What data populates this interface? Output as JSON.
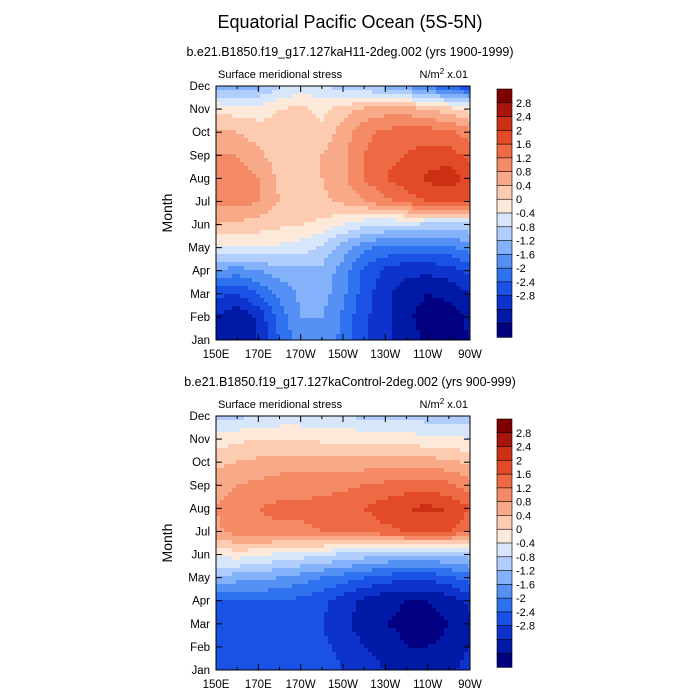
{
  "figure": {
    "title": "Equatorial Pacific Ocean (5S-5N)"
  },
  "colors": {
    "levels_fill": [
      "#000080",
      "#001aa6",
      "#0d33cc",
      "#1a52e6",
      "#2f72f0",
      "#5590f5",
      "#84b2fa",
      "#b0cdfb",
      "#d8e6fc",
      "#fde9d9",
      "#fccbb0",
      "#f8a987",
      "#f48a66",
      "#ee6a45",
      "#e34a28",
      "#cc3014",
      "#a8150a",
      "#800000"
    ]
  },
  "chart_data": [
    {
      "type": "heatmap",
      "subtitle": "b.e21.B1850.f19_g17.127kaH11-2deg.002 (yrs 1900-1999)",
      "left_label": "Surface meridional stress",
      "units_prefix": "N/m",
      "units_sup": "2",
      "units_suffix": " x.01",
      "xlabel": "",
      "ylabel": "Month",
      "x": [
        150,
        160,
        170,
        180,
        190,
        200,
        210,
        220,
        230,
        240,
        250,
        260,
        270
      ],
      "xticks": [
        "150E",
        "170E",
        "170W",
        "150W",
        "130W",
        "110W",
        "90W"
      ],
      "yticks": [
        "Jan",
        "Feb",
        "Mar",
        "Apr",
        "May",
        "Jun",
        "Jul",
        "Aug",
        "Sep",
        "Oct",
        "Nov",
        "Dec"
      ],
      "levels": [
        -2.8,
        -2.4,
        -2.0,
        -1.6,
        -1.2,
        -0.8,
        -0.4,
        0,
        0.4,
        0.8,
        1.2,
        1.6,
        2.0,
        2.4,
        2.8
      ],
      "colorbar_labels": [
        "2.8",
        "2.4",
        "2",
        "1.6",
        "1.2",
        "0.8",
        "0.4",
        "0",
        "-0.4",
        "-0.8",
        "-1.2",
        "-1.6",
        "-2",
        "-2.4",
        "-2.8"
      ],
      "z": [
        [
          -2.6,
          -2.7,
          -2.4,
          -1.6,
          -1.0,
          -0.9,
          -1.3,
          -1.9,
          -2.3,
          -2.6,
          -2.9,
          -3.0,
          -2.8
        ],
        [
          -2.4,
          -2.8,
          -2.3,
          -1.4,
          -0.8,
          -0.8,
          -1.3,
          -1.9,
          -2.3,
          -2.7,
          -3.0,
          -3.0,
          -2.7
        ],
        [
          -1.9,
          -2.0,
          -1.6,
          -1.1,
          -0.7,
          -0.6,
          -1.1,
          -1.8,
          -2.3,
          -2.6,
          -2.8,
          -2.7,
          -2.4
        ],
        [
          -0.9,
          -1.0,
          -0.8,
          -0.6,
          -0.5,
          -0.5,
          -1.0,
          -1.7,
          -2.1,
          -2.3,
          -2.3,
          -2.2,
          -1.9
        ],
        [
          0.4,
          0.3,
          0.4,
          0.3,
          0.2,
          -0.1,
          -0.6,
          -1.1,
          -1.3,
          -1.4,
          -1.4,
          -1.3,
          -1.0
        ],
        [
          1.2,
          1.1,
          1.0,
          0.9,
          0.8,
          0.7,
          0.4,
          0.1,
          0.0,
          0.0,
          -0.1,
          -0.2,
          -0.1
        ],
        [
          1.7,
          1.8,
          1.6,
          1.2,
          1.1,
          1.1,
          1.3,
          1.6,
          1.9,
          2.2,
          2.4,
          2.5,
          2.4
        ],
        [
          1.8,
          1.9,
          1.6,
          1.1,
          1.1,
          1.2,
          1.5,
          2.0,
          2.4,
          2.6,
          2.9,
          3.0,
          2.7
        ],
        [
          1.6,
          1.6,
          1.3,
          1.0,
          1.0,
          1.2,
          1.5,
          2.0,
          2.3,
          2.4,
          2.6,
          2.6,
          2.3
        ],
        [
          1.3,
          1.2,
          1.0,
          0.9,
          1.0,
          0.9,
          1.4,
          1.9,
          2.1,
          2.2,
          2.2,
          2.1,
          1.8
        ],
        [
          0.7,
          0.6,
          0.6,
          0.8,
          0.9,
          0.7,
          1.0,
          1.3,
          1.4,
          1.4,
          1.2,
          1.0,
          0.6
        ],
        [
          -0.6,
          -0.7,
          -0.5,
          -0.1,
          0.2,
          0.0,
          -0.2,
          -0.4,
          -0.6,
          -0.9,
          -1.3,
          -1.7,
          -1.9
        ]
      ]
    },
    {
      "type": "heatmap",
      "subtitle": "b.e21.B1850.f19_g17.127kaControl-2deg.002 (yrs 900-999)",
      "left_label": "Surface meridional stress",
      "units_prefix": "N/m",
      "units_sup": "2",
      "units_suffix": " x.01",
      "xlabel": "",
      "ylabel": "Month",
      "x": [
        150,
        160,
        170,
        180,
        190,
        200,
        210,
        220,
        230,
        240,
        250,
        260,
        270
      ],
      "xticks": [
        "150E",
        "170E",
        "170W",
        "150W",
        "130W",
        "110W",
        "90W"
      ],
      "yticks": [
        "Jan",
        "Feb",
        "Mar",
        "Apr",
        "May",
        "Jun",
        "Jul",
        "Aug",
        "Sep",
        "Oct",
        "Nov",
        "Dec"
      ],
      "levels": [
        -2.8,
        -2.4,
        -2.0,
        -1.6,
        -1.2,
        -0.8,
        -0.4,
        0,
        0.4,
        0.8,
        1.2,
        1.6,
        2.0,
        2.4,
        2.8
      ],
      "colorbar_labels": [
        "2.8",
        "2.4",
        "2",
        "1.6",
        "1.2",
        "0.8",
        "0.4",
        "0",
        "-0.4",
        "-0.8",
        "-1.2",
        "-1.6",
        "-2",
        "-2.4",
        "-2.8"
      ],
      "z": [
        [
          -1.8,
          -1.9,
          -1.8,
          -1.7,
          -1.6,
          -1.8,
          -2.0,
          -2.2,
          -2.4,
          -2.6,
          -2.6,
          -2.5,
          -2.2
        ],
        [
          -1.7,
          -1.8,
          -1.7,
          -1.6,
          -1.7,
          -1.9,
          -2.1,
          -2.4,
          -2.6,
          -2.8,
          -2.8,
          -2.7,
          -2.4
        ],
        [
          -1.7,
          -1.8,
          -1.8,
          -1.7,
          -1.8,
          -2.0,
          -2.3,
          -2.6,
          -2.8,
          -2.9,
          -3.0,
          -2.8,
          -2.5
        ],
        [
          -1.6,
          -1.7,
          -1.6,
          -1.6,
          -1.7,
          -1.9,
          -2.2,
          -2.5,
          -2.7,
          -2.8,
          -2.8,
          -2.6,
          -2.3
        ],
        [
          -0.5,
          -0.6,
          -0.7,
          -0.8,
          -1.0,
          -1.2,
          -1.4,
          -1.6,
          -1.8,
          -1.9,
          -1.9,
          -1.7,
          -1.4
        ],
        [
          0.5,
          0.6,
          0.5,
          0.3,
          0.2,
          0.1,
          -0.1,
          -0.2,
          -0.3,
          -0.4,
          -0.4,
          -0.3,
          -0.2
        ],
        [
          1.5,
          1.8,
          1.9,
          1.9,
          1.9,
          2.0,
          2.1,
          2.2,
          2.3,
          2.4,
          2.5,
          2.4,
          2.1
        ],
        [
          1.6,
          1.9,
          2.0,
          2.1,
          2.1,
          2.2,
          2.3,
          2.4,
          2.6,
          2.8,
          2.9,
          2.8,
          2.4
        ],
        [
          1.4,
          1.6,
          1.7,
          1.8,
          1.8,
          1.8,
          1.9,
          2.0,
          2.1,
          2.2,
          2.2,
          2.1,
          1.8
        ],
        [
          1.1,
          1.2,
          1.3,
          1.4,
          1.4,
          1.4,
          1.4,
          1.4,
          1.4,
          1.4,
          1.4,
          1.3,
          1.1
        ],
        [
          0.6,
          0.7,
          0.8,
          0.8,
          0.8,
          0.7,
          0.7,
          0.7,
          0.6,
          0.6,
          0.5,
          0.5,
          0.4
        ],
        [
          -0.2,
          -0.1,
          0.0,
          0.1,
          0.1,
          0.0,
          0.0,
          -0.1,
          -0.1,
          -0.1,
          -0.2,
          -0.2,
          -0.2
        ]
      ]
    }
  ]
}
